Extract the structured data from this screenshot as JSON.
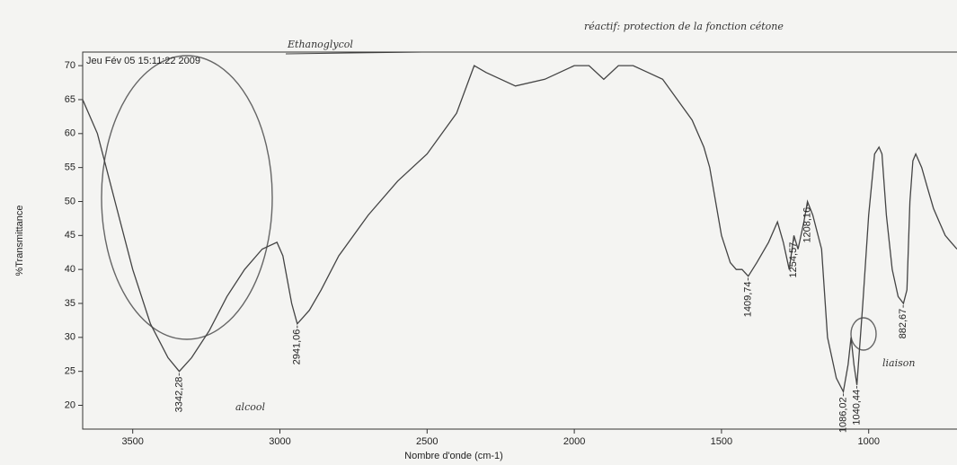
{
  "chart_data": {
    "type": "line",
    "title": "Jeu Fév 05 15:11:22 2009",
    "x_label": "Nombre d'onde (cm-1)",
    "y_label": "%Transmittance",
    "xlim": [
      3670,
      700
    ],
    "ylim": [
      16.5,
      72
    ],
    "xticks": [
      3500,
      3000,
      2500,
      2000,
      1500,
      1000
    ],
    "yticks": [
      20,
      25,
      30,
      35,
      40,
      45,
      50,
      55,
      60,
      65,
      70
    ],
    "series": [
      {
        "name": "Ethanoglycol",
        "color": "#444444",
        "x": [
          3670,
          3620,
          3560,
          3500,
          3440,
          3380,
          3342,
          3300,
          3240,
          3180,
          3120,
          3060,
          3010,
          2990,
          2960,
          2941,
          2920,
          2900,
          2860,
          2800,
          2700,
          2600,
          2500,
          2400,
          2340,
          2300,
          2200,
          2100,
          2000,
          1950,
          1900,
          1850,
          1800,
          1750,
          1700,
          1650,
          1600,
          1560,
          1540,
          1500,
          1470,
          1450,
          1430,
          1409,
          1380,
          1340,
          1310,
          1290,
          1270,
          1254,
          1240,
          1220,
          1208,
          1190,
          1160,
          1140,
          1110,
          1086,
          1070,
          1060,
          1050,
          1040,
          1020,
          1000,
          980,
          965,
          955,
          940,
          920,
          900,
          882,
          870,
          860,
          850,
          840,
          820,
          800,
          780,
          760,
          740,
          720,
          700
        ],
        "values": [
          65,
          60,
          50,
          40,
          32,
          27,
          25,
          27,
          31,
          36,
          40,
          43,
          44,
          42,
          35,
          32,
          33,
          34,
          37,
          42,
          48,
          53,
          57,
          63,
          70,
          69,
          67,
          68,
          70,
          70,
          68,
          70,
          70,
          69,
          68,
          65,
          62,
          58,
          55,
          45,
          41,
          40,
          40,
          39,
          41,
          44,
          47,
          44,
          40,
          45,
          43,
          47,
          50,
          48,
          43,
          30,
          24,
          22,
          26,
          30,
          26,
          23,
          35,
          48,
          57,
          58,
          57,
          48,
          40,
          36,
          35,
          37,
          50,
          56,
          57,
          55,
          52,
          49,
          47,
          45,
          44,
          43
        ]
      }
    ],
    "peaks": [
      {
        "value": 3342.28,
        "label": "3342,28"
      },
      {
        "value": 2941.06,
        "label": "2941,06"
      },
      {
        "value": 1409.74,
        "label": "1409,74"
      },
      {
        "value": 1254.57,
        "label": "1254,57"
      },
      {
        "value": 1208.16,
        "label": "1208,16"
      },
      {
        "value": 1086.02,
        "label": "1086,02"
      },
      {
        "value": 1040.44,
        "label": "1040,44"
      },
      {
        "value": 882.67,
        "label": "882,67"
      }
    ],
    "notes": {
      "header": "réactif: protection de la fonction cétone",
      "compound": "Ethanoglycol",
      "alcohol": "alcool",
      "bond": "liaison"
    }
  }
}
